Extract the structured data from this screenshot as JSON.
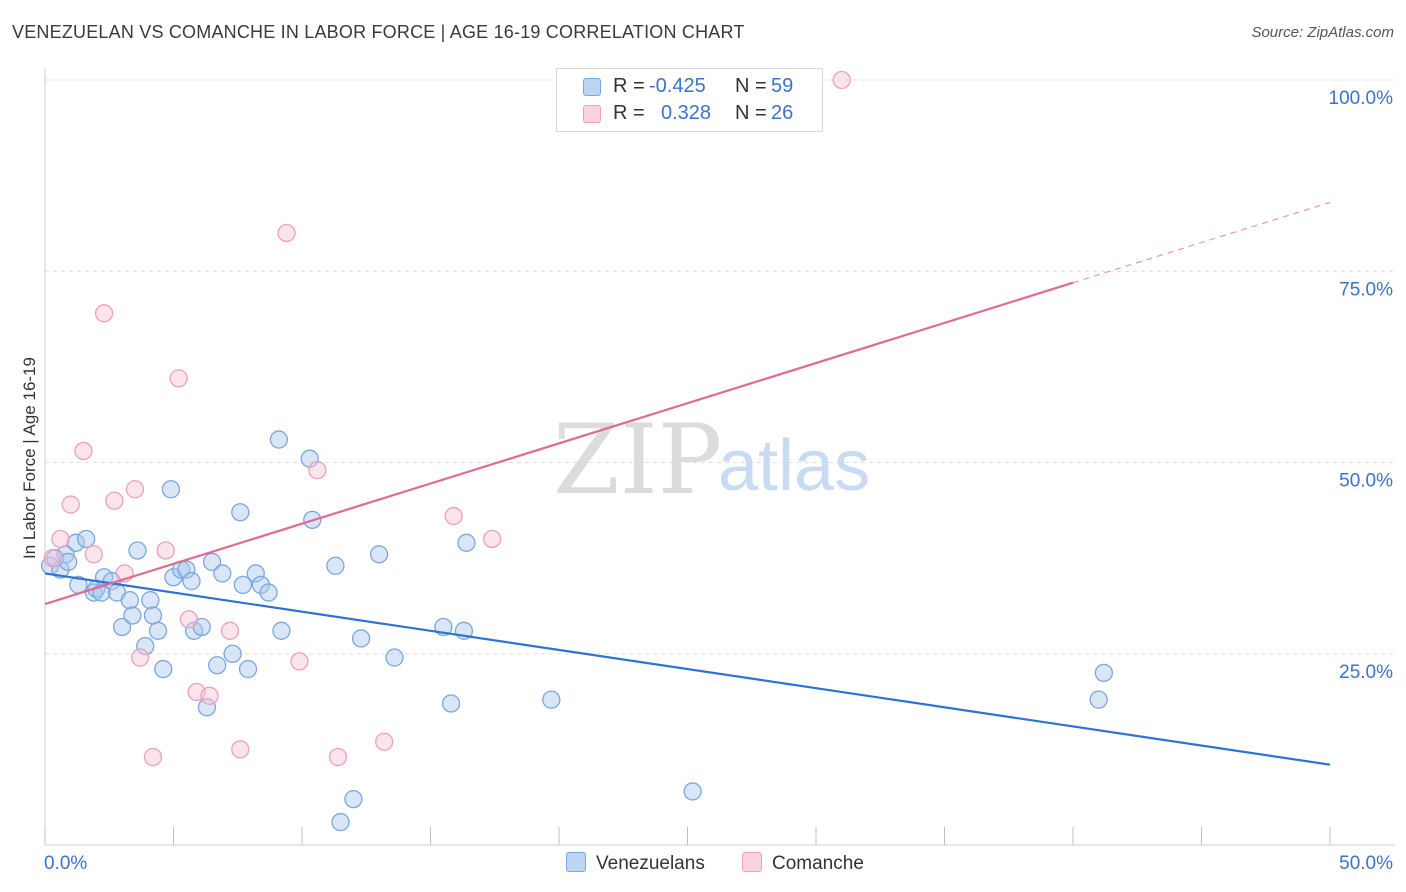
{
  "header": {
    "title": "VENEZUELAN VS COMANCHE IN LABOR FORCE | AGE 16-19 CORRELATION CHART",
    "source": "Source: ZipAtlas.com"
  },
  "watermark": {
    "zip": "ZIP",
    "atlas": "atlas"
  },
  "stats": [
    {
      "r_label": "R =",
      "r_value": "-0.425",
      "n_label": "N =",
      "n_value": "59",
      "color": "#a9c8ef",
      "border": "#7aa7e0"
    },
    {
      "r_label": "R =",
      "r_value": "0.328",
      "n_label": "N =",
      "n_value": "26",
      "color": "#f7c3d4",
      "border": "#eea0b9"
    }
  ],
  "legend": [
    {
      "label": "Venezuelans",
      "color": "#bcd5f3",
      "border": "#7aa7e0"
    },
    {
      "label": "Comanche",
      "color": "#fbd3e0",
      "border": "#eea0b9"
    }
  ],
  "chart_data": {
    "type": "scatter",
    "title": "VENEZUELAN VS COMANCHE IN LABOR FORCE | AGE 16-19 CORRELATION CHART",
    "xlabel": "",
    "ylabel": "In Labor Force | Age 16-19",
    "xlim": [
      0,
      50
    ],
    "ylim": [
      0,
      100
    ],
    "x_tick_labels": [
      "0.0%",
      "50.0%"
    ],
    "y_ticks": [
      25,
      50,
      75,
      100
    ],
    "y_tick_labels": [
      "25.0%",
      "50.0%",
      "75.0%",
      "100.0%"
    ],
    "grid": true,
    "series": [
      {
        "name": "Venezuelans",
        "color": "#7aa7e0",
        "fill": "rgba(170,200,240,0.45)",
        "line_color": "#2f72d0",
        "trend": {
          "x0": 0,
          "y0": 35.5,
          "x1": 50,
          "y1": 10.5
        },
        "points": [
          [
            0.2,
            36.5
          ],
          [
            0.4,
            37.5
          ],
          [
            0.6,
            36.0
          ],
          [
            0.8,
            38.0
          ],
          [
            0.9,
            37.0
          ],
          [
            1.2,
            39.5
          ],
          [
            1.3,
            34.0
          ],
          [
            1.6,
            40.0
          ],
          [
            1.9,
            33.0
          ],
          [
            2.0,
            33.5
          ],
          [
            2.2,
            33.0
          ],
          [
            2.3,
            35.0
          ],
          [
            2.6,
            34.5
          ],
          [
            2.8,
            33.0
          ],
          [
            3.0,
            28.5
          ],
          [
            3.3,
            32.0
          ],
          [
            3.4,
            30.0
          ],
          [
            3.6,
            38.5
          ],
          [
            3.9,
            26.0
          ],
          [
            4.1,
            32.0
          ],
          [
            4.2,
            30.0
          ],
          [
            4.4,
            28.0
          ],
          [
            4.6,
            23.0
          ],
          [
            4.9,
            46.5
          ],
          [
            5.0,
            35.0
          ],
          [
            5.3,
            36.0
          ],
          [
            5.5,
            36.0
          ],
          [
            5.7,
            34.5
          ],
          [
            5.8,
            28.0
          ],
          [
            6.1,
            28.5
          ],
          [
            6.3,
            18.0
          ],
          [
            6.5,
            37.0
          ],
          [
            6.7,
            23.5
          ],
          [
            6.9,
            35.5
          ],
          [
            7.3,
            25.0
          ],
          [
            7.6,
            43.5
          ],
          [
            7.7,
            34.0
          ],
          [
            7.9,
            23.0
          ],
          [
            8.2,
            35.5
          ],
          [
            8.4,
            34.0
          ],
          [
            8.7,
            33.0
          ],
          [
            9.1,
            53.0
          ],
          [
            9.2,
            28.0
          ],
          [
            10.3,
            50.5
          ],
          [
            10.4,
            42.5
          ],
          [
            11.3,
            36.5
          ],
          [
            11.5,
            3.0
          ],
          [
            12.0,
            6.0
          ],
          [
            12.3,
            27.0
          ],
          [
            13.0,
            38.0
          ],
          [
            13.6,
            24.5
          ],
          [
            15.5,
            28.5
          ],
          [
            15.8,
            18.5
          ],
          [
            16.3,
            28.0
          ],
          [
            16.4,
            39.5
          ],
          [
            19.7,
            19.0
          ],
          [
            25.2,
            7.0
          ],
          [
            41.0,
            19.0
          ],
          [
            41.2,
            22.5
          ]
        ]
      },
      {
        "name": "Comanche",
        "color": "#eea0b9",
        "fill": "rgba(248,195,212,0.45)",
        "line_color": "#e06a94",
        "trend": {
          "x0": 0,
          "y0": 31.5,
          "x1": 40,
          "y1": 73.5,
          "x_dash_end": 50,
          "y_dash_end": 84
        },
        "points": [
          [
            0.3,
            37.5
          ],
          [
            0.6,
            40.0
          ],
          [
            1.0,
            44.5
          ],
          [
            1.5,
            51.5
          ],
          [
            1.9,
            38.0
          ],
          [
            2.3,
            69.5
          ],
          [
            2.7,
            45.0
          ],
          [
            3.1,
            35.5
          ],
          [
            3.5,
            46.5
          ],
          [
            3.7,
            24.5
          ],
          [
            4.2,
            11.5
          ],
          [
            4.7,
            38.5
          ],
          [
            5.2,
            61.0
          ],
          [
            5.6,
            29.5
          ],
          [
            5.9,
            20.0
          ],
          [
            6.4,
            19.5
          ],
          [
            7.2,
            28.0
          ],
          [
            7.6,
            12.5
          ],
          [
            9.4,
            80.0
          ],
          [
            9.9,
            24.0
          ],
          [
            10.6,
            49.0
          ],
          [
            11.4,
            11.5
          ],
          [
            13.2,
            13.5
          ],
          [
            15.9,
            43.0
          ],
          [
            17.4,
            40.0
          ],
          [
            31.0,
            100.0
          ]
        ]
      }
    ]
  }
}
